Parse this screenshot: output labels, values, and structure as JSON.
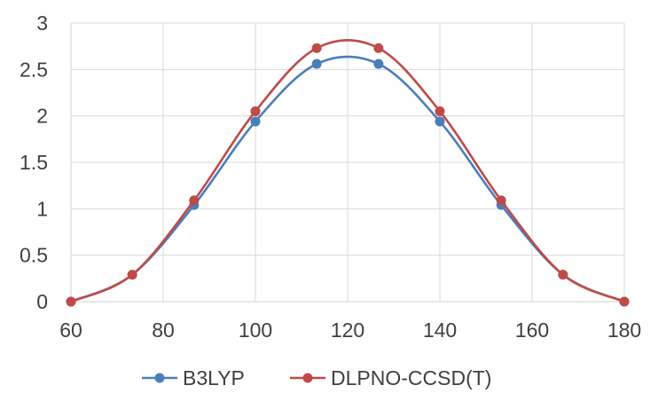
{
  "chart_data": {
    "type": "line",
    "smooth": true,
    "title": "",
    "xlabel": "",
    "ylabel": "",
    "xlim": [
      60,
      180
    ],
    "ylim": [
      0,
      3
    ],
    "x_ticks": [
      60,
      80,
      100,
      120,
      140,
      160,
      180
    ],
    "y_ticks": [
      0,
      0.5,
      1,
      1.5,
      2,
      2.5,
      3
    ],
    "x_tick_labels": [
      "60",
      "80",
      "100",
      "120",
      "140",
      "160",
      "180"
    ],
    "y_tick_labels": [
      "0",
      "0.5",
      "1",
      "1.5",
      "2",
      "2.5",
      "3"
    ],
    "grid": true,
    "legend_position": "bottom",
    "series": [
      {
        "name": "B3LYP",
        "color": "#4a7ebb",
        "x": [
          60,
          73.3,
          86.7,
          100,
          113.3,
          126.7,
          140,
          153.3,
          166.7,
          180
        ],
        "y": [
          0,
          0.29,
          1.04,
          1.94,
          2.56,
          2.56,
          1.94,
          1.04,
          0.29,
          0
        ]
      },
      {
        "name": "DLPNO-CCSD(T)",
        "color": "#be4b48",
        "x": [
          60,
          73.3,
          86.7,
          100,
          113.3,
          126.7,
          140,
          153.3,
          166.7,
          180
        ],
        "y": [
          0,
          0.29,
          1.09,
          2.05,
          2.73,
          2.73,
          2.05,
          1.09,
          0.29,
          0
        ]
      }
    ]
  }
}
